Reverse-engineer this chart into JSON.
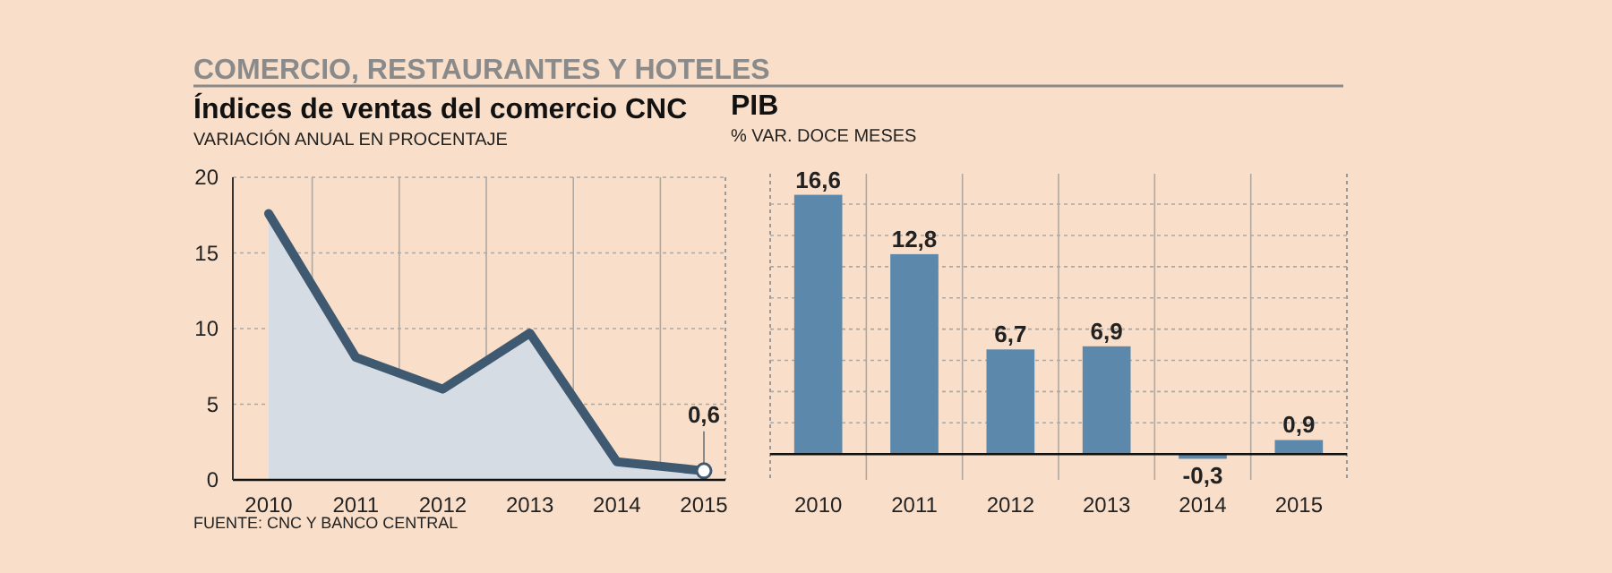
{
  "chart_data": [
    {
      "type": "area",
      "title": "Índices de ventas del comercio CNC",
      "subtitle": "VARIACIÓN ANUAL EN PROCENTAJE",
      "categories": [
        "2010",
        "2011",
        "2012",
        "2013",
        "2014",
        "2015"
      ],
      "series": [
        {
          "color": "#3f5a70",
          "values": [
            17.6,
            8.1,
            6.0,
            9.7,
            1.2,
            0.6
          ],
          "value_labels": [
            null,
            null,
            null,
            null,
            null,
            "0,6"
          ]
        }
      ],
      "ylim": [
        0,
        20
      ],
      "yticks": [
        0,
        5,
        10,
        15,
        20
      ],
      "grid": true,
      "annotations": [
        "COMERCIO, RESTAURANTES Y HOTELES",
        "FUENTE: CNC Y BANCO CENTRAL"
      ]
    },
    {
      "type": "bar",
      "title": "PIB",
      "subtitle": "% VAR. DOCE MESES",
      "categories": [
        "2010",
        "2011",
        "2012",
        "2013",
        "2014",
        "2015"
      ],
      "values": [
        16.6,
        12.8,
        6.7,
        6.9,
        -0.3,
        0.9
      ],
      "value_labels": [
        "16,6",
        "12,8",
        "6,7",
        "6,9",
        "-0,3",
        "0,9"
      ],
      "color": "#5b88ab",
      "grid": true
    }
  ]
}
